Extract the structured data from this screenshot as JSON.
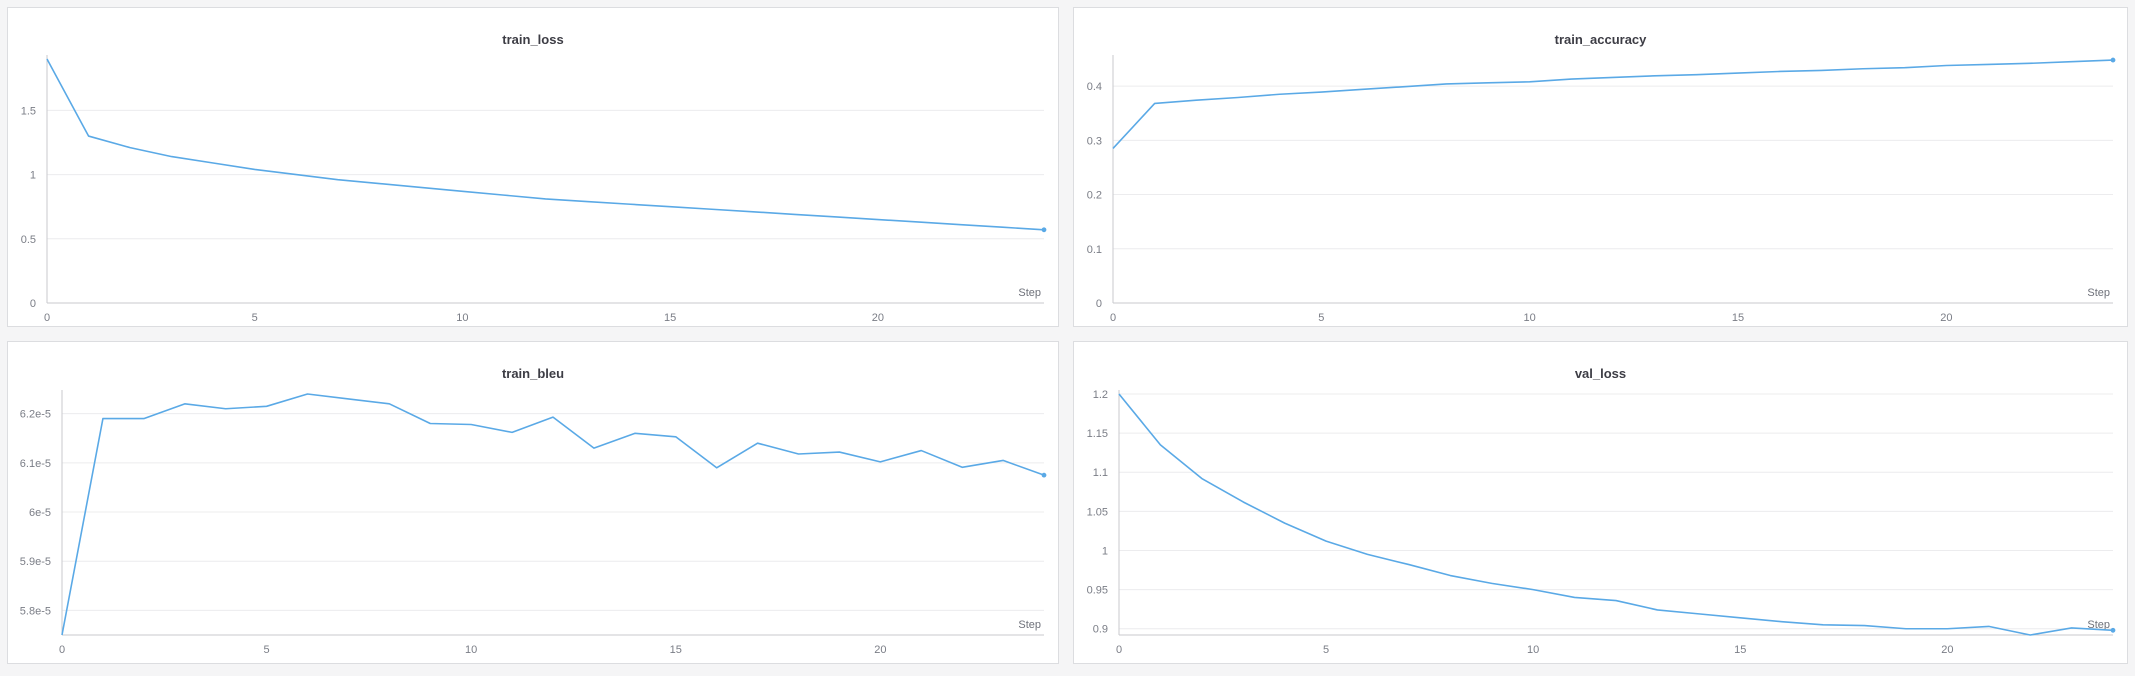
{
  "theme": {
    "line_color": "#5aa9e6"
  },
  "chart_data": [
    {
      "id": "train_loss",
      "type": "line",
      "title": "train_loss",
      "xlabel": "Step",
      "ylabel": "",
      "x": [
        0,
        1,
        2,
        3,
        4,
        5,
        6,
        7,
        8,
        9,
        10,
        11,
        12,
        13,
        14,
        15,
        16,
        17,
        18,
        19,
        20,
        21,
        22,
        23,
        24
      ],
      "series": [
        {
          "values": [
            1.9,
            1.3,
            1.21,
            1.14,
            1.09,
            1.04,
            1.0,
            0.96,
            0.93,
            0.9,
            0.87,
            0.84,
            0.81,
            0.79,
            0.77,
            0.75,
            0.73,
            0.71,
            0.69,
            0.67,
            0.65,
            0.63,
            0.61,
            0.59,
            0.57
          ]
        }
      ],
      "xlim": [
        0,
        24
      ],
      "ylim": [
        0,
        1.9
      ],
      "xticks": [
        0,
        5,
        10,
        15,
        20
      ],
      "xtick_labels": [
        "0",
        "5",
        "10",
        "15",
        "20"
      ],
      "yticks": [
        0,
        0.5,
        1,
        1.5
      ],
      "ytick_labels": [
        "0",
        "0.5",
        "1",
        "1.5"
      ],
      "grid": true
    },
    {
      "id": "train_accuracy",
      "type": "line",
      "title": "train_accuracy",
      "xlabel": "Step",
      "ylabel": "",
      "x": [
        0,
        1,
        2,
        3,
        4,
        5,
        6,
        7,
        8,
        9,
        10,
        11,
        12,
        13,
        14,
        15,
        16,
        17,
        18,
        19,
        20,
        21,
        22,
        23,
        24
      ],
      "series": [
        {
          "values": [
            0.285,
            0.368,
            0.374,
            0.379,
            0.385,
            0.389,
            0.394,
            0.399,
            0.404,
            0.406,
            0.408,
            0.413,
            0.416,
            0.419,
            0.421,
            0.424,
            0.427,
            0.429,
            0.432,
            0.434,
            0.438,
            0.44,
            0.442,
            0.445,
            0.448
          ]
        }
      ],
      "xlim": [
        0,
        24
      ],
      "ylim": [
        0,
        0.45
      ],
      "xticks": [
        0,
        5,
        10,
        15,
        20
      ],
      "xtick_labels": [
        "0",
        "5",
        "10",
        "15",
        "20"
      ],
      "yticks": [
        0,
        0.1,
        0.2,
        0.3,
        0.4
      ],
      "ytick_labels": [
        "0",
        "0.1",
        "0.2",
        "0.3",
        "0.4"
      ],
      "grid": true
    },
    {
      "id": "train_bleu",
      "type": "line",
      "title": "train_bleu",
      "xlabel": "Step",
      "ylabel": "",
      "x": [
        0,
        1,
        2,
        3,
        4,
        5,
        6,
        7,
        8,
        9,
        10,
        11,
        12,
        13,
        14,
        15,
        16,
        17,
        18,
        19,
        20,
        21,
        22,
        23,
        24
      ],
      "series": [
        {
          "values": [
            5.75e-05,
            6.19e-05,
            6.19e-05,
            6.22e-05,
            6.21e-05,
            6.215e-05,
            6.24e-05,
            6.23e-05,
            6.22e-05,
            6.18e-05,
            6.178e-05,
            6.162e-05,
            6.193e-05,
            6.13e-05,
            6.16e-05,
            6.153e-05,
            6.09e-05,
            6.14e-05,
            6.118e-05,
            6.122e-05,
            6.102e-05,
            6.125e-05,
            6.091e-05,
            6.105e-05,
            6.075e-05
          ]
        }
      ],
      "xlim": [
        0,
        24
      ],
      "ylim": [
        5.75e-05,
        6.24e-05
      ],
      "xticks": [
        0,
        5,
        10,
        15,
        20
      ],
      "xtick_labels": [
        "0",
        "5",
        "10",
        "15",
        "20"
      ],
      "yticks": [
        5.8e-05,
        5.9e-05,
        6e-05,
        6.1e-05,
        6.2e-05
      ],
      "ytick_labels": [
        "5.8e-5",
        "5.9e-5",
        "6e-5",
        "6.1e-5",
        "6.2e-5"
      ],
      "grid": true
    },
    {
      "id": "val_loss",
      "type": "line",
      "title": "val_loss",
      "xlabel": "Step",
      "ylabel": "",
      "x": [
        0,
        1,
        2,
        3,
        4,
        5,
        6,
        7,
        8,
        9,
        10,
        11,
        12,
        13,
        14,
        15,
        16,
        17,
        18,
        19,
        20,
        21,
        22,
        23,
        24
      ],
      "series": [
        {
          "values": [
            1.2,
            1.135,
            1.092,
            1.062,
            1.035,
            1.012,
            0.995,
            0.982,
            0.968,
            0.958,
            0.95,
            0.94,
            0.936,
            0.924,
            0.919,
            0.914,
            0.909,
            0.905,
            0.904,
            0.9,
            0.9,
            0.903,
            0.892,
            0.901,
            0.898
          ]
        }
      ],
      "xlim": [
        0,
        24
      ],
      "ylim": [
        0.892,
        1.2
      ],
      "xticks": [
        0,
        5,
        10,
        15,
        20
      ],
      "xtick_labels": [
        "0",
        "5",
        "10",
        "15",
        "20"
      ],
      "yticks": [
        0.9,
        0.95,
        1,
        1.05,
        1.1,
        1.15,
        1.2
      ],
      "ytick_labels": [
        "0.9",
        "0.95",
        "1",
        "1.05",
        "1.1",
        "1.15",
        "1.2"
      ],
      "grid": true
    }
  ]
}
